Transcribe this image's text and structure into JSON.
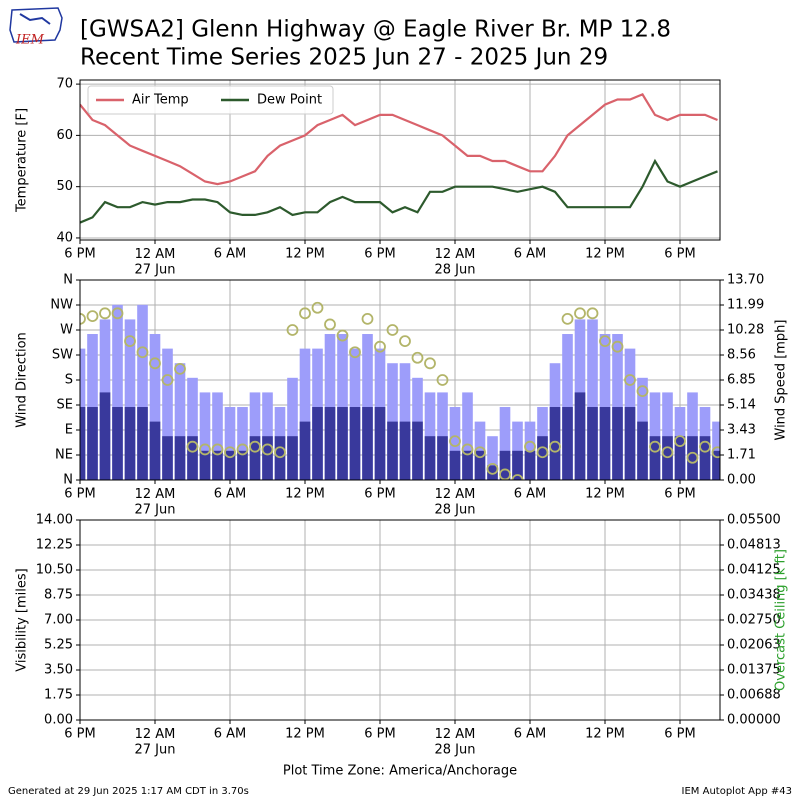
{
  "header": {
    "logo": "IEM",
    "title": [
      "[GWSA2] Glenn Highway @ Eagle River Br. MP 12.8",
      "Recent Time Series 2025 Jun 27 - 2025 Jun 29"
    ]
  },
  "footer": {
    "left": "Generated at 29 Jun 2025 1:17 AM CDT in 3.70s",
    "right": "IEM Autoplot App #43"
  },
  "chart_data": [
    {
      "type": "line",
      "ylabel": "Temperature [F]",
      "legend": "upper left",
      "grid": true,
      "xlim": [
        0,
        51.2
      ],
      "ylim": [
        39.6,
        70.8
      ],
      "yticks": [
        40,
        50,
        60,
        70
      ],
      "xticks": [
        {
          "value": 0,
          "label": "6 PM"
        },
        {
          "value": 6,
          "label": "12 AM\n27 Jun"
        },
        {
          "value": 12,
          "label": "6 AM"
        },
        {
          "value": 18,
          "label": "12 PM"
        },
        {
          "value": 24,
          "label": "6 PM"
        },
        {
          "value": 30,
          "label": "12 AM\n28 Jun"
        },
        {
          "value": 36,
          "label": "6 AM"
        },
        {
          "value": 42,
          "label": "12 PM"
        },
        {
          "value": 48,
          "label": "6 PM"
        }
      ],
      "x": [
        0,
        1,
        2,
        3,
        4,
        5,
        6,
        7,
        8,
        9,
        10,
        11,
        12,
        13,
        14,
        15,
        16,
        17,
        18,
        19,
        20,
        21,
        22,
        23,
        24,
        25,
        26,
        27,
        28,
        29,
        30,
        31,
        32,
        33,
        34,
        35,
        36,
        37,
        38,
        39,
        40,
        41,
        42,
        43,
        44,
        45,
        46,
        47,
        48,
        49,
        50,
        51
      ],
      "series": [
        {
          "name": "Air Temp",
          "color": "#d9626b",
          "values": [
            66,
            63,
            62,
            60,
            58,
            57,
            56,
            55,
            54,
            52.5,
            51,
            50.5,
            51,
            52,
            53,
            56,
            58,
            59,
            60,
            62,
            63,
            64,
            62,
            63,
            64,
            64,
            63,
            62,
            61,
            60,
            58,
            56,
            56,
            55,
            55,
            54,
            53,
            53,
            56,
            60,
            62,
            64,
            66,
            67,
            67,
            68,
            64,
            63,
            64,
            64,
            64,
            63
          ]
        },
        {
          "name": "Dew Point",
          "color": "#2d5a2d",
          "values": [
            43,
            44,
            47,
            46,
            46,
            47,
            46.5,
            47,
            47,
            47.5,
            47.5,
            47,
            45,
            44.5,
            44.5,
            45,
            46,
            44.5,
            45,
            45,
            47,
            48,
            47,
            47,
            47,
            45,
            46,
            45,
            49,
            49,
            50,
            50,
            50,
            50,
            49.5,
            49,
            49.5,
            50,
            49,
            46,
            46,
            46,
            46,
            46,
            46,
            50,
            55,
            51,
            50,
            51,
            52,
            53
          ]
        }
      ]
    },
    {
      "type": "bar",
      "ylabel": "Wind Direction",
      "y2label": "Wind Speed [mph]",
      "grid": true,
      "xlim": [
        0,
        51.2
      ],
      "ylim": [
        0,
        360
      ],
      "yticks": [
        {
          "value": 0,
          "label": "N"
        },
        {
          "value": 45,
          "label": "NE"
        },
        {
          "value": 90,
          "label": "E"
        },
        {
          "value": 135,
          "label": "SE"
        },
        {
          "value": 180,
          "label": "S"
        },
        {
          "value": 225,
          "label": "SW"
        },
        {
          "value": 270,
          "label": "W"
        },
        {
          "value": 315,
          "label": "NW"
        },
        {
          "value": 360,
          "label": "N"
        }
      ],
      "y2lim": [
        0,
        13.7
      ],
      "y2ticks": [
        {
          "value": 0,
          "label": "0.00"
        },
        {
          "value": 1.7125,
          "label": "1.71"
        },
        {
          "value": 3.425,
          "label": "3.43"
        },
        {
          "value": 5.1375,
          "label": "5.14"
        },
        {
          "value": 6.85,
          "label": "6.85"
        },
        {
          "value": 8.5625,
          "label": "8.56"
        },
        {
          "value": 10.275,
          "label": "10.28"
        },
        {
          "value": 11.9875,
          "label": "11.99"
        },
        {
          "value": 13.7,
          "label": "13.70"
        }
      ],
      "xticks": [
        {
          "value": 0,
          "label": "6 PM"
        },
        {
          "value": 6,
          "label": "12 AM\n27 Jun"
        },
        {
          "value": 12,
          "label": "6 AM"
        },
        {
          "value": 18,
          "label": "12 PM"
        },
        {
          "value": 24,
          "label": "6 PM"
        },
        {
          "value": 30,
          "label": "12 AM\n28 Jun"
        },
        {
          "value": 36,
          "label": "6 AM"
        },
        {
          "value": 42,
          "label": "12 PM"
        },
        {
          "value": 48,
          "label": "6 PM"
        }
      ],
      "x": [
        0,
        1,
        2,
        3,
        4,
        5,
        6,
        7,
        8,
        9,
        10,
        11,
        12,
        13,
        14,
        15,
        16,
        17,
        18,
        19,
        20,
        21,
        22,
        23,
        24,
        25,
        26,
        27,
        28,
        29,
        30,
        31,
        32,
        33,
        34,
        35,
        36,
        37,
        38,
        39,
        40,
        41,
        42,
        43,
        44,
        45,
        46,
        47,
        48,
        49,
        50,
        51
      ],
      "series": [
        {
          "color": "#9d9dfa",
          "axis": "y2",
          "values": [
            9,
            10,
            11,
            12,
            11,
            12,
            10,
            9,
            8,
            7,
            6,
            6,
            5,
            5,
            6,
            6,
            5,
            7,
            9,
            9,
            10,
            10,
            9,
            10,
            9,
            8,
            8,
            7,
            6,
            6,
            5,
            6,
            4,
            3,
            5,
            4,
            4,
            5,
            8,
            10,
            11,
            11,
            10,
            10,
            9,
            7,
            6,
            6,
            5,
            6,
            5,
            4
          ]
        },
        {
          "color": "#39399c",
          "axis": "y2",
          "values": [
            5,
            5,
            6,
            5,
            5,
            5,
            4,
            3,
            3,
            3,
            2,
            2,
            2,
            2,
            3,
            3,
            3,
            3,
            4,
            5,
            5,
            5,
            5,
            5,
            5,
            4,
            4,
            4,
            3,
            3,
            2,
            2,
            2,
            1,
            2,
            2,
            2,
            3,
            5,
            5,
            6,
            5,
            5,
            5,
            5,
            4,
            3,
            3,
            3,
            3,
            3,
            2
          ]
        },
        {
          "type": "scatter",
          "color": "#b3b56a",
          "values": [
            290,
            295,
            300,
            300,
            250,
            230,
            210,
            180,
            200,
            60,
            55,
            55,
            50,
            55,
            60,
            55,
            50,
            270,
            300,
            310,
            280,
            260,
            230,
            290,
            240,
            270,
            250,
            220,
            210,
            180,
            70,
            55,
            50,
            20,
            10,
            0,
            60,
            50,
            60,
            290,
            300,
            300,
            250,
            240,
            180,
            160,
            60,
            50,
            70,
            40,
            60,
            50
          ]
        }
      ]
    },
    {
      "type": "line",
      "ylabel": "Visibility [miles]",
      "y2label": "Overcast Ceiling [k ft]",
      "y2label_color": "#2ca02c",
      "grid": true,
      "xlabel": "Plot Time Zone: America/Anchorage",
      "xlim": [
        0,
        51.2
      ],
      "ylim": [
        0,
        14
      ],
      "yticks": [
        {
          "value": 0,
          "label": "0.00"
        },
        {
          "value": 1.75,
          "label": "1.75"
        },
        {
          "value": 3.5,
          "label": "3.50"
        },
        {
          "value": 5.25,
          "label": "5.25"
        },
        {
          "value": 7,
          "label": "7.00"
        },
        {
          "value": 8.75,
          "label": "8.75"
        },
        {
          "value": 10.5,
          "label": "10.50"
        },
        {
          "value": 12.25,
          "label": "12.25"
        },
        {
          "value": 14,
          "label": "14.00"
        }
      ],
      "y2lim": [
        0,
        0.055
      ],
      "y2ticks": [
        {
          "value": 0,
          "label": "0.00000"
        },
        {
          "value": 0.006875,
          "label": "0.00688"
        },
        {
          "value": 0.01375,
          "label": "0.01375"
        },
        {
          "value": 0.020625,
          "label": "0.02063"
        },
        {
          "value": 0.0275,
          "label": "0.02750"
        },
        {
          "value": 0.034375,
          "label": "0.03438"
        },
        {
          "value": 0.04125,
          "label": "0.04125"
        },
        {
          "value": 0.048125,
          "label": "0.04813"
        },
        {
          "value": 0.055,
          "label": "0.05500"
        }
      ],
      "xticks": [
        {
          "value": 0,
          "label": "6 PM"
        },
        {
          "value": 6,
          "label": "12 AM\n27 Jun"
        },
        {
          "value": 12,
          "label": "6 AM"
        },
        {
          "value": 18,
          "label": "12 PM"
        },
        {
          "value": 24,
          "label": "6 PM"
        },
        {
          "value": 30,
          "label": "12 AM\n28 Jun"
        },
        {
          "value": 36,
          "label": "6 AM"
        },
        {
          "value": 42,
          "label": "12 PM"
        },
        {
          "value": 48,
          "label": "6 PM"
        }
      ]
    }
  ]
}
